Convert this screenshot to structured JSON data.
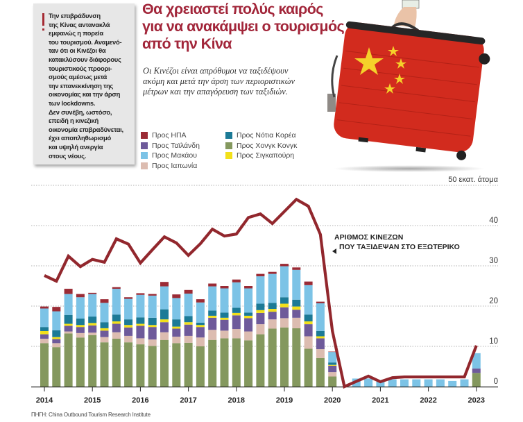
{
  "note": {
    "text": "Την επιβράδυνση\nτης Κίνας αντανακλά\nεμφανώς η πορεία\nτου τουρισμού. Αναμενό-\nταν ότι οι Κινέζοι θα\nκατακλύσουν διάφορους\nτουριστικούς προορι-\nσμούς αμέσως μετά\nτην επανεκκίνηση της\nοικονομίας και την άρση\nτων lockdowns.\nΔεν συνέβη, ωστόσο,\nεπειδή η κινεζική\nοικονομία επιβραδύνεται,\nέχει αποπληθωρισμό\nκαι υψηλή ανεργία\nστους νέους."
  },
  "header": {
    "title": "Θα χρειαστεί πολύς καιρός\nγια να ανακάμψει ο τουρισμός\nαπό την Κίνα",
    "subtitle": "Οι Κινέζοι είναι απρόθυμοι να ταξιδέψουν\nακόμη και μετά την άρση των περιοριστικών\nμέτρων και την απαγόρευση των ταξιδιών."
  },
  "source": "ΠΗΓΗ: China Outbound Tourism Research Institute",
  "chart_data": {
    "type": "bar",
    "subtype": "stacked bar + line",
    "unit_label": "50 εκατ. άτομα",
    "ylim": [
      0,
      50
    ],
    "yticks": [
      0,
      10,
      20,
      30,
      40
    ],
    "grid": true,
    "y_axis_side": "right",
    "legend_placement": "top-left",
    "xtick_labels": [
      "2014",
      "2015",
      "2016",
      "2017",
      "2018",
      "2019",
      "2020",
      "2021",
      "2022",
      "2023"
    ],
    "categories": [
      "2014-Q1",
      "2014-Q2",
      "2014-Q3",
      "2014-Q4",
      "2015-Q1",
      "2015-Q2",
      "2015-Q3",
      "2015-Q4",
      "2016-Q1",
      "2016-Q2",
      "2016-Q3",
      "2016-Q4",
      "2017-Q1",
      "2017-Q2",
      "2017-Q3",
      "2017-Q4",
      "2018-Q1",
      "2018-Q2",
      "2018-Q3",
      "2018-Q4",
      "2019-Q1",
      "2019-Q2",
      "2019-Q3",
      "2019-Q4",
      "2020-Q1",
      "2020-Q2",
      "2020-Q3",
      "2020-Q4",
      "2021-Q1",
      "2021-Q2",
      "2021-Q3",
      "2021-Q4",
      "2022-Q1",
      "2022-Q2",
      "2022-Q3",
      "2022-Q4",
      "2023-Q1"
    ],
    "series": [
      {
        "name": "Προς Χονγκ Κονγκ",
        "color": "#84985e",
        "values": [
          10.8,
          9.8,
          13.2,
          12.2,
          12.8,
          11.0,
          11.9,
          11.0,
          10.5,
          10.1,
          11.6,
          10.8,
          10.9,
          10.0,
          11.6,
          12.0,
          12.0,
          11.5,
          13.0,
          14.4,
          14.7,
          14.5,
          9.4,
          7.1,
          2.5,
          0,
          0,
          0,
          0,
          0,
          0,
          0,
          0,
          0,
          0,
          0,
          3.4
        ]
      },
      {
        "name": "Προς Ιαπωνία",
        "color": "#dcbcb0",
        "values": [
          1.1,
          1.0,
          0.5,
          1.1,
          0.6,
          1.3,
          1.6,
          1.6,
          1.5,
          1.6,
          1.9,
          1.6,
          1.7,
          2.2,
          2.5,
          1.9,
          2.3,
          2.2,
          2.5,
          2.3,
          2.3,
          2.6,
          3.1,
          2.2,
          1.1,
          0,
          0,
          0,
          0,
          0,
          0,
          0,
          0,
          0,
          0,
          0,
          0
        ]
      },
      {
        "name": "Προς Ταϊλάνδη",
        "color": "#6e5a9a",
        "values": [
          1.1,
          1.0,
          1.4,
          1.5,
          1.8,
          1.6,
          2.1,
          2.1,
          3.1,
          3.1,
          2.5,
          2.0,
          2.8,
          2.6,
          3.0,
          2.7,
          3.4,
          3.3,
          2.8,
          1.9,
          2.7,
          2.0,
          3.0,
          2.7,
          1.6,
          0,
          0,
          0,
          0,
          0,
          0,
          0,
          0,
          0,
          0,
          0,
          1.1
        ]
      },
      {
        "name": "Προς Σιγκαπούρη",
        "color": "#f2e01a",
        "values": [
          0.8,
          0.5,
          0.5,
          0.5,
          0.6,
          0.6,
          0.6,
          0.6,
          0.5,
          0.5,
          0.7,
          0.5,
          0.6,
          0.5,
          0.5,
          0.5,
          0.6,
          0.6,
          0.7,
          0.7,
          0.9,
          0.8,
          0.7,
          0.5,
          0.2,
          0,
          0,
          0,
          0,
          0,
          0,
          0,
          0,
          0,
          0,
          0,
          0
        ]
      },
      {
        "name": "Προς Νότια Κορέα",
        "color": "#1c7a96",
        "values": [
          1.0,
          1.7,
          2.2,
          1.6,
          1.6,
          1.5,
          1.7,
          1.4,
          1.6,
          1.8,
          2.5,
          1.8,
          1.5,
          0.6,
          1.3,
          1.3,
          1.3,
          0.8,
          1.6,
          1.5,
          1.6,
          1.7,
          1.7,
          1.3,
          0.6,
          0,
          0,
          0,
          0,
          0,
          0,
          0,
          0,
          0,
          0,
          0,
          0
        ]
      },
      {
        "name": "Προς Μακάου",
        "color": "#7cc3e6",
        "values": [
          4.6,
          4.7,
          5.2,
          5.3,
          5.6,
          4.8,
          6.4,
          5.1,
          5.6,
          5.5,
          5.7,
          5.3,
          5.6,
          5.0,
          6.0,
          6.0,
          6.3,
          6.0,
          6.8,
          7.2,
          7.7,
          7.4,
          7.3,
          6.9,
          2.6,
          0,
          2.0,
          2.0,
          1.2,
          1.8,
          1.8,
          1.8,
          1.8,
          1.8,
          1.4,
          1.8,
          3.8
        ]
      },
      {
        "name": "Προς ΗΠΑ",
        "color": "#9b2b35",
        "values": [
          0.5,
          1.1,
          1.3,
          0.8,
          0.3,
          0.9,
          0.4,
          0.4,
          0.4,
          0.4,
          1.1,
          0.9,
          0.9,
          0.8,
          0.7,
          0.6,
          0.7,
          0.6,
          0.6,
          0.5,
          0.6,
          0.6,
          0.9,
          0.4,
          0.1,
          0,
          0,
          0,
          0,
          0,
          0,
          0,
          0,
          0,
          0,
          0,
          0
        ]
      }
    ],
    "line": {
      "name": "ΑΡΙΘΜΟΣ ΚΙΝΕΖΩΝ\nΠΟΥ ΤΑΞΙΔΕΨΑΝ ΣΤΟ ΕΞΩΤΕΡΙΚΟ",
      "color": "#92272d",
      "values": [
        27.6,
        26.2,
        32.4,
        29.8,
        31.6,
        30.9,
        36.7,
        35.4,
        30.7,
        34.0,
        37.2,
        35.7,
        32.6,
        35.5,
        39.1,
        37.4,
        37.9,
        42.0,
        42.9,
        40.5,
        43.5,
        46.5,
        44.8,
        37.8,
        13.8,
        0,
        1.3,
        2.6,
        1.2,
        2.2,
        2.4,
        2.4,
        2.4,
        2.4,
        2.4,
        2.4,
        10.2
      ]
    }
  },
  "legend_layout_order": [
    6,
    2,
    5,
    1,
    4,
    0,
    3
  ]
}
